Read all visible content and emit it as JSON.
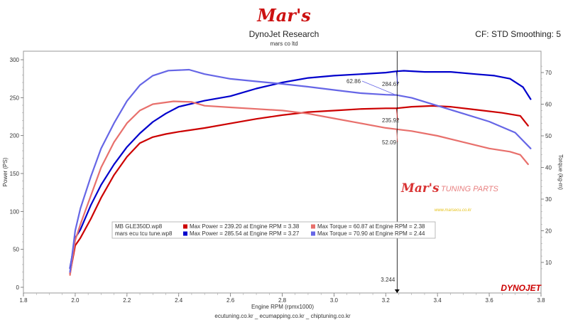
{
  "header": {
    "logo": "Mar's",
    "title": "DynoJet Research",
    "subtitle": "mars co ltd",
    "right_info": "CF: STD Smoothing: 5"
  },
  "footer": {
    "sites": "ecutuning.co.kr _ ecumapping.co.kr _ chiptuning.co.kr",
    "brand": "DYNOJET"
  },
  "watermark": {
    "logo": "Mar's",
    "text": "TUNING PARTS",
    "url": "www.marsecu.co.kr"
  },
  "colors": {
    "red": "#cc0000",
    "red_light": "#e8706c",
    "blue": "#0000cc",
    "blue_light": "#6666e6"
  },
  "chart_data": {
    "type": "line",
    "xlabel": "Engine RPM (rpmx1000)",
    "ylabel_left": "Power (PS)",
    "ylabel_right": "Torque (kg-m)",
    "xlim": [
      1.8,
      3.8
    ],
    "x_ticks": [
      "1.8",
      "2.0",
      "2.2",
      "2.4",
      "2.6",
      "2.8",
      "3.0",
      "3.2",
      "3.4",
      "3.6",
      "3.8"
    ],
    "ylim_left": [
      0,
      300
    ],
    "y_ticks_left": [
      "0",
      "50",
      "100",
      "150",
      "200",
      "250",
      "300"
    ],
    "ylim_right": [
      0,
      75
    ],
    "y_ticks_right": [
      "10",
      "20",
      "30",
      "40",
      "50",
      "60",
      "70"
    ],
    "grid": false,
    "cursor": {
      "x": 3.244,
      "label": "3.244"
    },
    "cursor_values": [
      {
        "text": "284.67",
        "series": "mars ecu tcu tune.wp8 Power"
      },
      {
        "text": "235.92",
        "series": "MB GLE350D.wp8 Power"
      },
      {
        "text": "62.86",
        "series": "mars ecu tcu tune.wp8 Torque"
      },
      {
        "text": "52.09",
        "series": "MB GLE350D.wp8 Torque"
      }
    ],
    "legend": {
      "placement": "bottom-center",
      "rows": [
        {
          "file": "MB GLE350D.wp8",
          "power_text": "Max Power = 239.20 at Engine RPM = 3.38",
          "torque_text": "Max Torque = 60.87 at Engine RPM = 2.38",
          "power_color": "#cc0000",
          "torque_color": "#e8706c"
        },
        {
          "file": "mars ecu tcu tune.wp8",
          "power_text": "Max Power = 285.54 at Engine RPM = 3.27",
          "torque_text": "Max Torque = 70.90 at Engine RPM = 2.44",
          "power_color": "#0000cc",
          "torque_color": "#6666e6"
        }
      ]
    },
    "series": [
      {
        "name": "MB GLE350D.wp8 Power",
        "axis": "left",
        "color": "#cc0000",
        "x": [
          1.98,
          2.0,
          2.02,
          2.06,
          2.1,
          2.15,
          2.2,
          2.25,
          2.3,
          2.35,
          2.4,
          2.5,
          2.6,
          2.7,
          2.8,
          2.9,
          3.0,
          3.1,
          3.2,
          3.24,
          3.3,
          3.38,
          3.45,
          3.55,
          3.65,
          3.72,
          3.75
        ],
        "y": [
          18,
          55,
          65,
          90,
          118,
          148,
          172,
          190,
          198,
          202,
          205,
          210,
          216,
          222,
          227,
          231,
          233,
          235,
          236,
          236,
          238,
          239.2,
          238,
          234,
          230,
          226,
          213
        ]
      },
      {
        "name": "mars ecu tcu tune.wp8 Power",
        "axis": "left",
        "color": "#0000cc",
        "x": [
          1.98,
          2.0,
          2.02,
          2.06,
          2.1,
          2.15,
          2.2,
          2.25,
          2.3,
          2.35,
          2.4,
          2.5,
          2.6,
          2.7,
          2.8,
          2.9,
          3.0,
          3.1,
          3.2,
          3.24,
          3.27,
          3.35,
          3.45,
          3.55,
          3.62,
          3.68,
          3.73,
          3.76
        ],
        "y": [
          25,
          65,
          76,
          108,
          135,
          162,
          185,
          203,
          218,
          229,
          238,
          246,
          252,
          262,
          270,
          276,
          279,
          281,
          283,
          284.7,
          285.5,
          284,
          284,
          281,
          279,
          275,
          264,
          248
        ]
      },
      {
        "name": "MB GLE350D.wp8 Torque",
        "axis": "right",
        "color": "#e8706c",
        "x": [
          1.98,
          2.0,
          2.02,
          2.06,
          2.1,
          2.15,
          2.2,
          2.25,
          2.3,
          2.38,
          2.45,
          2.5,
          2.6,
          2.7,
          2.8,
          2.9,
          3.0,
          3.1,
          3.2,
          3.24,
          3.3,
          3.4,
          3.5,
          3.6,
          3.68,
          3.72,
          3.75
        ],
        "y": [
          6,
          17,
          22,
          31,
          40,
          48,
          54,
          58,
          60,
          60.9,
          60.7,
          59.5,
          59,
          58.5,
          58,
          57,
          55.5,
          54,
          52.5,
          52.1,
          51.5,
          50,
          48,
          46,
          45,
          44,
          41
        ]
      },
      {
        "name": "mars ecu tcu tune.wp8 Torque",
        "axis": "right",
        "color": "#6666e6",
        "x": [
          1.98,
          2.0,
          2.02,
          2.06,
          2.1,
          2.15,
          2.2,
          2.25,
          2.3,
          2.36,
          2.44,
          2.5,
          2.6,
          2.7,
          2.8,
          2.9,
          3.0,
          3.1,
          3.2,
          3.24,
          3.3,
          3.4,
          3.5,
          3.6,
          3.7,
          3.76
        ],
        "y": [
          7,
          20,
          27,
          37,
          46,
          54,
          61,
          66,
          69,
          70.6,
          70.9,
          69.5,
          68,
          67.2,
          66.4,
          65.5,
          64.5,
          63.5,
          63,
          62.9,
          62,
          59.5,
          57,
          54.5,
          51,
          46
        ]
      }
    ]
  }
}
